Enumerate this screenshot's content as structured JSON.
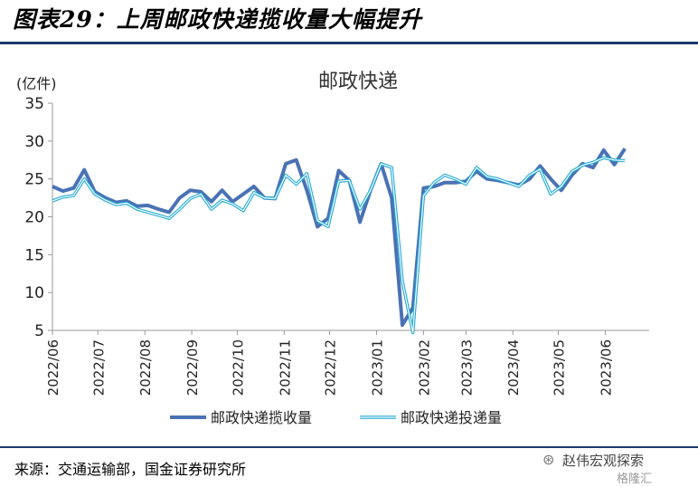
{
  "figure": {
    "title": "图表29：上周邮政快递揽收量大幅提升",
    "source": "来源：交通运输部，国金证券研究所",
    "watermark_line1": "赵伟宏观探索",
    "watermark_line2": "格隆汇",
    "watermark_icon": "wechat-icon"
  },
  "colors": {
    "series1": "#4a72b4",
    "series2": "#1ea8d6",
    "rule": "#1a3a6b",
    "axis": "#999999"
  },
  "chart_data": {
    "type": "line",
    "title": "邮政快递",
    "ylabel": "(亿件)",
    "ylim": [
      5,
      35
    ],
    "yticks": [
      5,
      10,
      15,
      20,
      25,
      30,
      35
    ],
    "xrange": [
      "2022-06-01",
      "2023-06-30"
    ],
    "xticks": [
      "2022/06",
      "2022/07",
      "2022/08",
      "2022/09",
      "2022/10",
      "2022/11",
      "2022/12",
      "2023/01",
      "2023/02",
      "2023/03",
      "2023/04",
      "2023/05",
      "2023/06"
    ],
    "grid": false,
    "legend": "bottom",
    "series": [
      {
        "name": "邮政快递揽收量",
        "points": [
          [
            "2022-06-01",
            24.0
          ],
          [
            "2022-06-08",
            23.4
          ],
          [
            "2022-06-15",
            23.8
          ],
          [
            "2022-06-22",
            26.2
          ],
          [
            "2022-06-29",
            23.3
          ],
          [
            "2022-07-06",
            22.5
          ],
          [
            "2022-07-13",
            21.9
          ],
          [
            "2022-07-20",
            22.1
          ],
          [
            "2022-07-27",
            21.4
          ],
          [
            "2022-08-03",
            21.5
          ],
          [
            "2022-08-10",
            21.0
          ],
          [
            "2022-08-17",
            20.6
          ],
          [
            "2022-08-24",
            22.5
          ],
          [
            "2022-08-31",
            23.5
          ],
          [
            "2022-09-07",
            23.3
          ],
          [
            "2022-09-14",
            22.0
          ],
          [
            "2022-09-21",
            23.5
          ],
          [
            "2022-09-28",
            22.0
          ],
          [
            "2022-10-05",
            23.0
          ],
          [
            "2022-10-12",
            24.0
          ],
          [
            "2022-10-19",
            22.5
          ],
          [
            "2022-10-26",
            22.4
          ],
          [
            "2022-11-02",
            27.0
          ],
          [
            "2022-11-09",
            27.5
          ],
          [
            "2022-11-16",
            23.5
          ],
          [
            "2022-11-23",
            18.7
          ],
          [
            "2022-11-30",
            19.8
          ],
          [
            "2022-12-07",
            26.1
          ],
          [
            "2022-12-14",
            24.8
          ],
          [
            "2022-12-21",
            19.3
          ],
          [
            "2022-12-28",
            23.5
          ],
          [
            "2023-01-04",
            27.0
          ],
          [
            "2023-01-11",
            22.5
          ],
          [
            "2023-01-18",
            5.7
          ],
          [
            "2023-01-25",
            8.0
          ],
          [
            "2023-02-01",
            23.8
          ],
          [
            "2023-02-08",
            24.0
          ],
          [
            "2023-02-15",
            24.5
          ],
          [
            "2023-02-22",
            24.5
          ],
          [
            "2023-03-01",
            24.7
          ],
          [
            "2023-03-08",
            26.0
          ],
          [
            "2023-03-15",
            25.0
          ],
          [
            "2023-03-22",
            24.8
          ],
          [
            "2023-03-29",
            24.5
          ],
          [
            "2023-04-05",
            24.2
          ],
          [
            "2023-04-12",
            25.0
          ],
          [
            "2023-04-19",
            26.7
          ],
          [
            "2023-04-26",
            25.0
          ],
          [
            "2023-05-03",
            23.5
          ],
          [
            "2023-05-10",
            25.5
          ],
          [
            "2023-05-17",
            27.0
          ],
          [
            "2023-05-24",
            26.5
          ],
          [
            "2023-05-31",
            28.8
          ],
          [
            "2023-06-07",
            26.9
          ],
          [
            "2023-06-14",
            29.0
          ]
        ]
      },
      {
        "name": "邮政快递投递量",
        "points": [
          [
            "2022-06-01",
            22.1
          ],
          [
            "2022-06-08",
            22.6
          ],
          [
            "2022-06-15",
            22.8
          ],
          [
            "2022-06-22",
            25.0
          ],
          [
            "2022-06-29",
            23.0
          ],
          [
            "2022-07-06",
            22.2
          ],
          [
            "2022-07-13",
            21.6
          ],
          [
            "2022-07-20",
            21.8
          ],
          [
            "2022-07-27",
            21.0
          ],
          [
            "2022-08-03",
            20.6
          ],
          [
            "2022-08-10",
            20.2
          ],
          [
            "2022-08-17",
            19.8
          ],
          [
            "2022-08-24",
            21.0
          ],
          [
            "2022-08-31",
            22.4
          ],
          [
            "2022-09-07",
            23.0
          ],
          [
            "2022-09-14",
            21.0
          ],
          [
            "2022-09-21",
            22.2
          ],
          [
            "2022-09-28",
            21.7
          ],
          [
            "2022-10-05",
            20.8
          ],
          [
            "2022-10-12",
            23.2
          ],
          [
            "2022-10-19",
            22.5
          ],
          [
            "2022-10-26",
            22.4
          ],
          [
            "2022-11-02",
            25.5
          ],
          [
            "2022-11-09",
            24.3
          ],
          [
            "2022-11-16",
            25.7
          ],
          [
            "2022-11-23",
            19.5
          ],
          [
            "2022-11-30",
            18.7
          ],
          [
            "2022-12-07",
            24.7
          ],
          [
            "2022-12-14",
            24.8
          ],
          [
            "2022-12-21",
            21.0
          ],
          [
            "2022-12-28",
            23.5
          ],
          [
            "2023-01-04",
            27.0
          ],
          [
            "2023-01-11",
            26.5
          ],
          [
            "2023-01-18",
            11.5
          ],
          [
            "2023-01-25",
            4.7
          ],
          [
            "2023-02-01",
            22.8
          ],
          [
            "2023-02-08",
            24.5
          ],
          [
            "2023-02-15",
            25.5
          ],
          [
            "2023-02-22",
            25.0
          ],
          [
            "2023-03-01",
            24.3
          ],
          [
            "2023-03-08",
            26.5
          ],
          [
            "2023-03-15",
            25.3
          ],
          [
            "2023-03-22",
            25.0
          ],
          [
            "2023-03-29",
            24.5
          ],
          [
            "2023-04-05",
            24.0
          ],
          [
            "2023-04-12",
            25.5
          ],
          [
            "2023-04-19",
            26.3
          ],
          [
            "2023-04-26",
            23.0
          ],
          [
            "2023-05-03",
            24.0
          ],
          [
            "2023-05-10",
            26.0
          ],
          [
            "2023-05-17",
            26.8
          ],
          [
            "2023-05-24",
            27.2
          ],
          [
            "2023-05-31",
            27.8
          ],
          [
            "2023-06-07",
            27.5
          ],
          [
            "2023-06-14",
            27.4
          ]
        ]
      }
    ]
  }
}
